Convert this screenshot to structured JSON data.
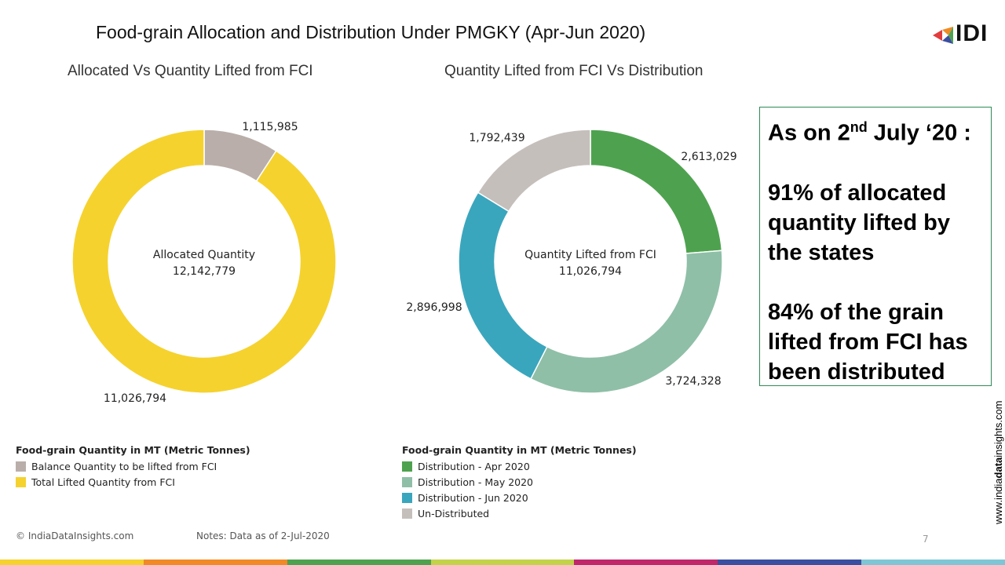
{
  "title": "Food-grain Allocation and Distribution Under PMGKY (Apr-Jun 2020)",
  "logo": {
    "text": "IDI"
  },
  "chart_data": [
    {
      "type": "pie",
      "title": "Allocated Vs Quantity Lifted from FCI",
      "center_label": "Allocated Quantity",
      "center_value": "12,142,779",
      "slices": [
        {
          "label": "Balance Quantity to be lifted from FCI",
          "value": 1115985,
          "value_text": "1,115,985",
          "color": "#b9aea9"
        },
        {
          "label": "Total Lifted Quantity from FCI",
          "value": 11026794,
          "value_text": "11,026,794",
          "color": "#f5d22e"
        }
      ],
      "legend_title": "Food-grain Quantity in MT (Metric Tonnes)"
    },
    {
      "type": "pie",
      "title": "Quantity Lifted from FCI Vs Distribution",
      "center_label": "Quantity Lifted from FCI",
      "center_value": "11,026,794",
      "slices": [
        {
          "label": "Distribution - Apr 2020",
          "value": 2613029,
          "value_text": "2,613,029",
          "color": "#4ea24f"
        },
        {
          "label": "Distribution - May 2020",
          "value": 3724328,
          "value_text": "3,724,328",
          "color": "#8fbfa7"
        },
        {
          "label": "Distribution - Jun 2020",
          "value": 2896998,
          "value_text": "2,896,998",
          "color": "#3aa6bd"
        },
        {
          "label": "Un-Distributed",
          "value": 1792439,
          "value_text": "1,792,439",
          "color": "#c5bfbc"
        }
      ],
      "legend_title": "Food-grain Quantity in MT (Metric Tonnes)"
    }
  ],
  "callout": {
    "line1_prefix": "As on 2",
    "line1_sup": "nd",
    "line1_suffix": " July ‘20 :",
    "para2": "91% of allocated quantity lifted by the states",
    "para3": "84% of the grain lifted from FCI has been distributed"
  },
  "footer": {
    "copyright": "© IndiaDataInsights.com",
    "notes": "Notes: Data as of 2-Jul-2020",
    "page_number": "7",
    "site_prefix": "www.india",
    "site_bold": "data",
    "site_suffix": "insights.com"
  },
  "colors": {
    "strip": [
      "#f5d22e",
      "#f08a24",
      "#4ea24f",
      "#c2d34a",
      "#c0266a",
      "#3a4fa0",
      "#7ec6d6"
    ]
  }
}
